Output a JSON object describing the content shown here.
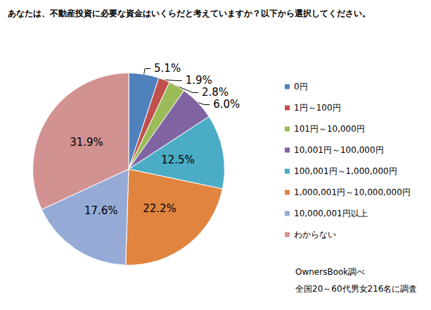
{
  "chart_data": {
    "type": "pie",
    "title": "あなたは、不動産投資に必要な資金はいくらだと考えていますか？以下から選択してください。",
    "categories": [
      "0円",
      "1円～100円",
      "101円～10,000円",
      "10,001円～100,000円",
      "100,001円～1,000,000円",
      "1,000,001円～10,000,000円",
      "10,000,001円以上",
      "わからない"
    ],
    "values": [
      5.1,
      1.9,
      2.8,
      6.0,
      12.5,
      22.2,
      17.6,
      31.9
    ],
    "value_labels": [
      "5.1%",
      "1.9%",
      "2.8%",
      "6.0%",
      "12.5%",
      "22.2%",
      "17.6%",
      "31.9%"
    ],
    "colors": [
      "#4f81bd",
      "#c0504d",
      "#9bbb59",
      "#8064a2",
      "#4bacc6",
      "#e0843f",
      "#95abd6",
      "#d29291"
    ],
    "data_labels": true,
    "legend": "right",
    "annotations": [
      "OwnersBook調べ",
      "全国20～60代男女216名に調査"
    ]
  }
}
